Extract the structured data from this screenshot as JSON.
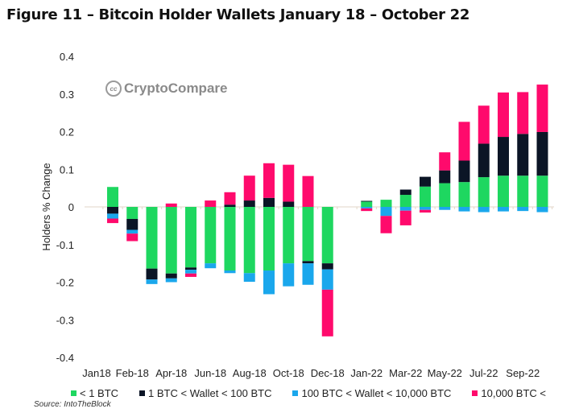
{
  "title": "Figure 11 – Bitcoin Holder Wallets January 18 – October 22",
  "logo_text": "CryptoCompare",
  "source": "Source: IntoTheBlock",
  "chart_data": {
    "type": "bar",
    "stacked": true,
    "title": "Figure 11 – Bitcoin Holder Wallets January 18 – October 22",
    "xlabel": "",
    "ylabel": "Holders % Change",
    "ylim": [
      -0.4,
      0.4
    ],
    "yticks": [
      "0.4",
      "0.3",
      "0.2",
      "0.1",
      "0",
      "-0.1",
      "-0.2",
      "-0.3",
      "-0.4"
    ],
    "grid": false,
    "legend_position": "bottom",
    "categories": [
      "Jan18",
      "Feb-18",
      "",
      "Apr-18",
      "",
      "Jun-18",
      "",
      "Aug-18",
      "",
      "Oct-18",
      "",
      "Dec-18",
      "",
      "Jan-22",
      "",
      "Mar-22",
      "",
      "May-22",
      "",
      "Jul-22",
      "",
      "Sep-22",
      ""
    ],
    "series": [
      {
        "name": "< 1 BTC",
        "color": "#1ed760",
        "values": [
          0.053,
          -0.032,
          -0.164,
          -0.177,
          -0.161,
          -0.15,
          -0.169,
          -0.176,
          -0.169,
          -0.15,
          -0.144,
          -0.15,
          null,
          0.014,
          0.019,
          0.032,
          0.054,
          0.063,
          0.066,
          0.079,
          0.083,
          0.083,
          0.083
        ]
      },
      {
        "name": "1 BTC < Wallet < 100 BTC",
        "color": "#0b1526",
        "values": [
          -0.018,
          -0.029,
          -0.029,
          -0.013,
          -0.006,
          0,
          0.006,
          0.017,
          0.024,
          0.014,
          -0.006,
          -0.016,
          null,
          0.002,
          0,
          0.014,
          0.026,
          0.034,
          0.057,
          0.089,
          0.103,
          0.111,
          0.116
        ]
      },
      {
        "name": "100 BTC < Wallet < 10,000 BTC",
        "color": "#1aa7ec",
        "values": [
          -0.013,
          -0.01,
          -0.012,
          -0.01,
          -0.01,
          -0.013,
          -0.007,
          -0.023,
          -0.063,
          -0.061,
          -0.057,
          -0.054,
          null,
          -0.004,
          -0.024,
          -0.01,
          -0.008,
          -0.008,
          -0.012,
          -0.014,
          -0.012,
          -0.011,
          -0.014
        ]
      },
      {
        "name": "10,000 BTC <",
        "color": "#ff0a6c",
        "values": [
          -0.012,
          -0.02,
          0,
          0.009,
          -0.009,
          0.017,
          0.033,
          0.066,
          0.092,
          0.098,
          0.082,
          -0.124,
          null,
          -0.007,
          -0.046,
          -0.039,
          -0.007,
          0.048,
          0.103,
          0.101,
          0.118,
          0.111,
          0.126
        ]
      }
    ]
  }
}
